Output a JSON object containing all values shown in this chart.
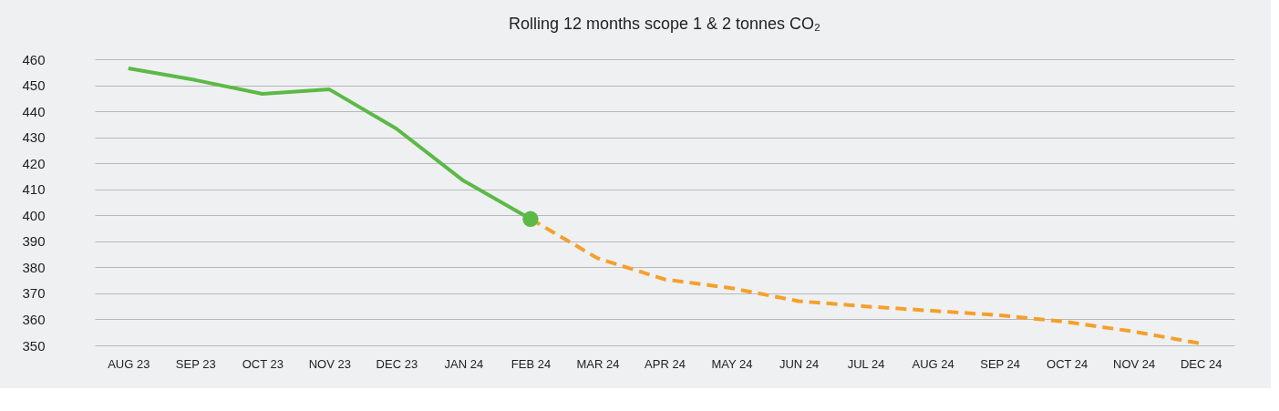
{
  "chart_data": {
    "type": "line",
    "title": "Rolling 12 months scope 1 & 2 tonnes CO₂",
    "categories": [
      "AUG 23",
      "SEP 23",
      "OCT 23",
      "NOV 23",
      "DEC 23",
      "JAN 24",
      "FEB 24",
      "MAR 24",
      "APR 24",
      "MAY 24",
      "JUN 24",
      "JUL 24",
      "AUG 24",
      "SEP 24",
      "OCT 24",
      "NOV 24",
      "DEC 24"
    ],
    "series": [
      {
        "type": "line",
        "color": "#5cb946",
        "line_style": "solid",
        "values": [
          456.5,
          452,
          446.7,
          448.4,
          433.3,
          413.3,
          398.6,
          null,
          null,
          null,
          null,
          null,
          null,
          null,
          null,
          null,
          null
        ]
      },
      {
        "type": "line",
        "color": "#f5a02a",
        "line_style": "dashed",
        "values": [
          null,
          null,
          null,
          null,
          null,
          null,
          398.6,
          383.5,
          375.4,
          372,
          367,
          365,
          363.3,
          361.6,
          359,
          355.3,
          350.7
        ]
      },
      {
        "type": "scatter",
        "color": "#5cb946",
        "marker": "circle",
        "values": [
          null,
          null,
          null,
          null,
          null,
          null,
          398.6,
          null,
          null,
          null,
          null,
          null,
          null,
          null,
          null,
          null,
          null
        ]
      }
    ],
    "ylim": [
      350,
      460
    ],
    "yticks": [
      350,
      360,
      370,
      380,
      390,
      400,
      410,
      420,
      430,
      440,
      450,
      460
    ],
    "grid": "y",
    "legend": false
  }
}
